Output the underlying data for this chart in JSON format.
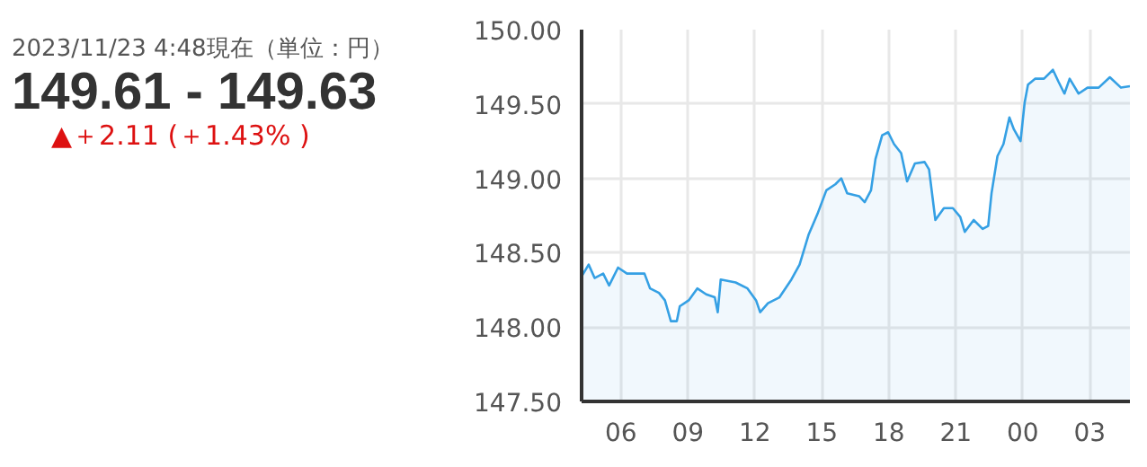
{
  "chart_data": {
    "type": "area",
    "color": "#35a0e4",
    "title": "149.61 - 149.63",
    "subtitle": "2023/11/23 4:48現在（単位：円）",
    "annotations": [
      "▲＋2.11 (＋1.43% )"
    ],
    "x": [
      "2023-11-22T04:14",
      "2023-11-22T04:33",
      "2023-11-22T04:49",
      "2023-11-22T05:12",
      "2023-11-22T05:28",
      "2023-11-22T05:52",
      "2023-11-22T06:16",
      "2023-11-22T07:03",
      "2023-11-22T07:18",
      "2023-11-22T07:42",
      "2023-11-22T07:58",
      "2023-11-22T08:14",
      "2023-11-22T08:30",
      "2023-11-22T08:38",
      "2023-11-22T09:02",
      "2023-11-22T09:25",
      "2023-11-22T09:49",
      "2023-11-22T10:12",
      "2023-11-22T10:20",
      "2023-11-22T10:28",
      "2023-11-22T11:08",
      "2023-11-22T11:40",
      "2023-11-22T12:03",
      "2023-11-22T12:14",
      "2023-11-22T12:35",
      "2023-11-22T13:06",
      "2023-11-22T13:38",
      "2023-11-22T14:00",
      "2023-11-22T14:24",
      "2023-11-22T14:48",
      "2023-11-22T15:12",
      "2023-11-22T15:36",
      "2023-11-22T15:52",
      "2023-11-22T16:08",
      "2023-11-22T16:40",
      "2023-11-22T16:55",
      "2023-11-22T17:12",
      "2023-11-22T17:24",
      "2023-11-22T17:42",
      "2023-11-22T17:58",
      "2023-11-22T18:14",
      "2023-11-22T18:33",
      "2023-11-22T18:49",
      "2023-11-22T19:10",
      "2023-11-22T19:36",
      "2023-11-22T19:48",
      "2023-11-22T20:05",
      "2023-11-22T20:28",
      "2023-11-22T20:52",
      "2023-11-22T21:12",
      "2023-11-22T21:24",
      "2023-11-22T21:48",
      "2023-11-22T22:12",
      "2023-11-22T22:27",
      "2023-11-22T22:36",
      "2023-11-22T22:52",
      "2023-11-22T23:08",
      "2023-11-22T23:24",
      "2023-11-22T23:36",
      "2023-11-22T23:54",
      "2023-11-23T00:05",
      "2023-11-23T00:14",
      "2023-11-23T00:33",
      "2023-11-23T00:57",
      "2023-11-23T01:21",
      "2023-11-23T01:36",
      "2023-11-23T01:52",
      "2023-11-23T02:06",
      "2023-11-23T02:30",
      "2023-11-23T02:54",
      "2023-11-23T03:24",
      "2023-11-23T03:54",
      "2023-11-23T04:24",
      "2023-11-23T04:48"
    ],
    "values": [
      148.34,
      148.42,
      148.33,
      148.36,
      148.28,
      148.4,
      148.36,
      148.36,
      148.26,
      148.23,
      148.18,
      148.04,
      148.04,
      148.14,
      148.18,
      148.26,
      148.22,
      148.2,
      148.1,
      148.32,
      148.3,
      148.26,
      148.18,
      148.1,
      148.16,
      148.2,
      148.32,
      148.42,
      148.62,
      148.76,
      148.92,
      148.96,
      149.0,
      148.9,
      148.88,
      148.84,
      148.92,
      149.13,
      149.29,
      149.31,
      149.23,
      149.17,
      148.98,
      149.1,
      149.11,
      149.06,
      148.72,
      148.8,
      148.8,
      148.74,
      148.64,
      148.72,
      148.66,
      148.68,
      148.9,
      149.15,
      149.23,
      149.41,
      149.33,
      149.25,
      149.51,
      149.63,
      149.67,
      149.67,
      149.73,
      149.65,
      149.57,
      149.67,
      149.57,
      149.61,
      149.61,
      149.68,
      149.61,
      149.62
    ],
    "xlim": [
      "2023-11-22T04:14",
      "2023-11-23T04:48"
    ],
    "ylim": [
      147.5,
      150.0
    ],
    "xticks": [
      {
        "value": "2023-11-22T06:00",
        "label": "06"
      },
      {
        "value": "2023-11-22T09:00",
        "label": "09"
      },
      {
        "value": "2023-11-22T12:00",
        "label": "12"
      },
      {
        "value": "2023-11-22T15:00",
        "label": "15"
      },
      {
        "value": "2023-11-22T18:00",
        "label": "18"
      },
      {
        "value": "2023-11-22T21:00",
        "label": "21"
      },
      {
        "value": "2023-11-23T00:00",
        "label": "00"
      },
      {
        "value": "2023-11-23T03:00",
        "label": "03"
      }
    ],
    "yticks": [
      {
        "value": 147.5,
        "label": "147.50"
      },
      {
        "value": 148.0,
        "label": "148.00"
      },
      {
        "value": 148.5,
        "label": "148.50"
      },
      {
        "value": 149.0,
        "label": "149.00"
      },
      {
        "value": 149.5,
        "label": "149.50"
      },
      {
        "value": 150.0,
        "label": "150.00"
      }
    ],
    "grid": true
  }
}
